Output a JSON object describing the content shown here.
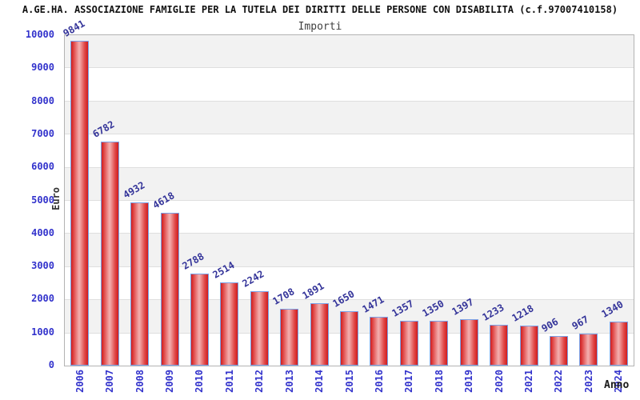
{
  "header": {
    "title": "A.GE.HA. ASSOCIAZIONE FAMIGLIE PER LA TUTELA DEI DIRITTI DELLE PERSONE CON DISABILITA (c.f.97007410158)",
    "subtitle": "Importi"
  },
  "chart_data": {
    "type": "bar",
    "title": "A.GE.HA. ASSOCIAZIONE FAMIGLIE PER LA TUTELA DEI DIRITTI DELLE PERSONE CON DISABILITA (c.f.97007410158)",
    "subtitle": "Importi",
    "xlabel": "Anno",
    "ylabel": "Euro",
    "categories": [
      "2006",
      "2007",
      "2008",
      "2009",
      "2010",
      "2011",
      "2012",
      "2013",
      "2014",
      "2015",
      "2016",
      "2017",
      "2018",
      "2019",
      "2020",
      "2021",
      "2022",
      "2023",
      "2024"
    ],
    "values": [
      9841,
      6782,
      4932,
      4618,
      2788,
      2514,
      2242,
      1708,
      1891,
      1650,
      1471,
      1357,
      1350,
      1397,
      1233,
      1218,
      906,
      967,
      1340
    ],
    "ylim": [
      0,
      10000
    ],
    "yticks": [
      0,
      1000,
      2000,
      3000,
      4000,
      5000,
      6000,
      7000,
      8000,
      9000,
      10000
    ],
    "grid": "horizontal gridlines with alternating 1000-unit background bands (gray band at top)",
    "legend": "none",
    "value_labels": "above each bar, rotated ~30deg",
    "x_tick_rotation": "vertical (bottom-to-top)",
    "colors": {
      "bar_fill_dark": "#cf1d1d",
      "bar_fill_light": "#f3b0b0",
      "bar_border": "#7aa2e8",
      "tick_label": "#3333cc",
      "value_label": "#333399",
      "band_gray": "#f2f2f2",
      "gridline": "#dedede",
      "plot_border": "#b3b3b3",
      "title_text": "#111111",
      "subtitle_text": "#404040",
      "axis_label_text": "#333333"
    }
  }
}
